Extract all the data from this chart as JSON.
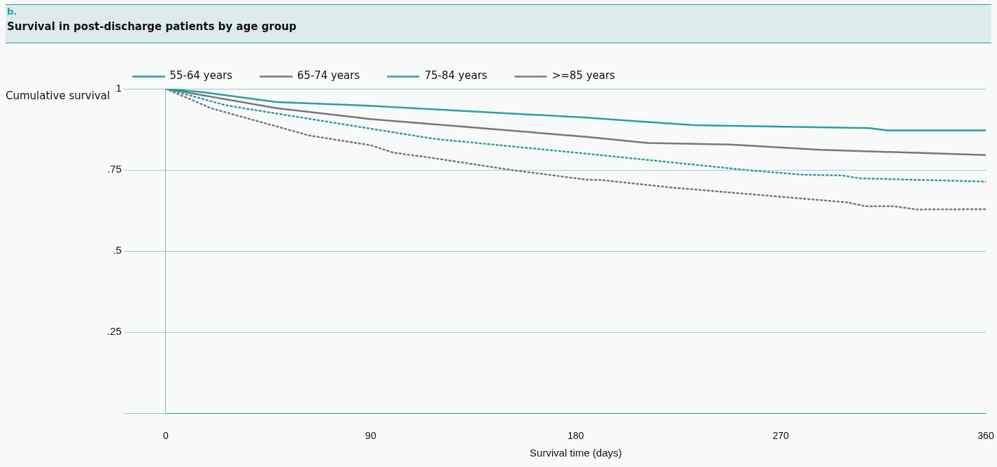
{
  "chart_data": {
    "type": "line",
    "subtitle": "b.",
    "title": "Survival in post-discharge patients by age group",
    "ylabel": "Cumulative survival",
    "xlabel": "Survival time (days)",
    "xlim": [
      0,
      360
    ],
    "xticks": [
      0,
      90,
      180,
      270,
      360
    ],
    "ylim": [
      0,
      1
    ],
    "yticks": [
      {
        "value": 0,
        "label": null
      },
      {
        "value": 0.25,
        "label": ".25"
      },
      {
        "value": 0.5,
        "label": ".5"
      },
      {
        "value": 0.75,
        "label": ".75"
      },
      1
    ],
    "grid": "y",
    "legend": "top left",
    "marker": "none",
    "series": [
      {
        "name": "55-64 years",
        "color": "#2a9fa0",
        "line_style": "solid",
        "x": [
          0,
          16.6,
          48.7,
          89,
          184.7,
          207,
          232,
          309,
          316.6,
          360
        ],
        "values": [
          1,
          0.989,
          0.959,
          0.948,
          0.911,
          0.9,
          0.888,
          0.879,
          0.872,
          0.872
        ]
      },
      {
        "name": "65-74 years",
        "color": "#777777",
        "line_style": "solid",
        "x": [
          0,
          48.7,
          89.4,
          184.7,
          211.5,
          248,
          287,
          360
        ],
        "values": [
          1,
          0.94,
          0.907,
          0.852,
          0.833,
          0.828,
          0.812,
          0.796
        ]
      },
      {
        "name": "75-84 years",
        "color": "#2a9fa0",
        "line_style": "dotted",
        "x": [
          0,
          26,
          29.8,
          115.8,
          119,
          184.7,
          258.7,
          280,
          296.7,
          305,
          360
        ],
        "values": [
          1,
          0.95,
          0.945,
          0.848,
          0.845,
          0.8,
          0.747,
          0.735,
          0.733,
          0.724,
          0.714
        ]
      },
      {
        "name": ">=85 years",
        "color": "#777777",
        "line_style": "dotted",
        "x": [
          0,
          19.6,
          23,
          61,
          63,
          86.4,
          90,
          100,
          117,
          151.5,
          184.7,
          191,
          221.6,
          225,
          295.7,
          299,
          307.6,
          319.6,
          330,
          360
        ],
        "values": [
          1,
          0.941,
          0.934,
          0.86,
          0.856,
          0.83,
          0.826,
          0.803,
          0.787,
          0.75,
          0.72,
          0.719,
          0.696,
          0.694,
          0.652,
          0.65,
          0.638,
          0.638,
          0.628,
          0.629
        ]
      }
    ]
  }
}
